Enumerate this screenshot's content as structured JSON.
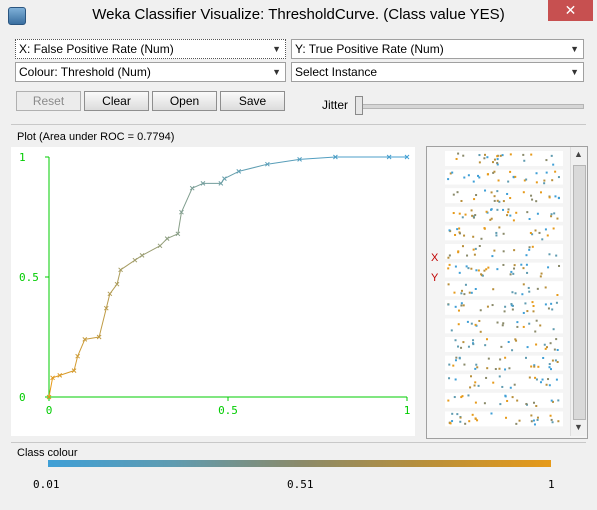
{
  "window": {
    "title": "Weka Classifier Visualize: ThresholdCurve. (Class value YES)",
    "close_glyph": "✕"
  },
  "controls": {
    "x_axis": "X: False Positive Rate (Num)",
    "y_axis": "Y: True Positive Rate (Num)",
    "colour": "Colour: Threshold (Num)",
    "instance": "Select Instance",
    "buttons": {
      "reset": "Reset",
      "clear": "Clear",
      "open": "Open",
      "save": "Save"
    },
    "jitter_label": "Jitter",
    "jitter_value": 0
  },
  "plot": {
    "label": "Plot (Area under ROC = 0.7794)",
    "x_ticks": [
      "0",
      "0.5",
      "1"
    ],
    "y_ticks": [
      "0",
      "0.5",
      "1"
    ],
    "axis_color": "#00cc00",
    "side_labels": {
      "x": "X",
      "y": "Y"
    }
  },
  "chart_data": {
    "type": "line",
    "xlim": [
      0,
      1
    ],
    "ylim": [
      0,
      1
    ],
    "x": [
      0.0,
      0.01,
      0.03,
      0.07,
      0.08,
      0.1,
      0.14,
      0.16,
      0.17,
      0.19,
      0.2,
      0.24,
      0.26,
      0.31,
      0.33,
      0.36,
      0.37,
      0.4,
      0.43,
      0.48,
      0.49,
      0.53,
      0.61,
      0.7,
      0.8,
      0.95,
      1.0
    ],
    "y": [
      0.0,
      0.08,
      0.09,
      0.11,
      0.17,
      0.24,
      0.25,
      0.37,
      0.43,
      0.47,
      0.53,
      0.57,
      0.59,
      0.63,
      0.66,
      0.68,
      0.77,
      0.87,
      0.89,
      0.89,
      0.91,
      0.94,
      0.97,
      0.99,
      1.0,
      1.0,
      1.0
    ]
  },
  "legend": {
    "label": "Class colour",
    "min": "0.01",
    "mid": "0.51",
    "max": "1",
    "low_color": "#3f9fd6",
    "high_color": "#e69a1a"
  }
}
